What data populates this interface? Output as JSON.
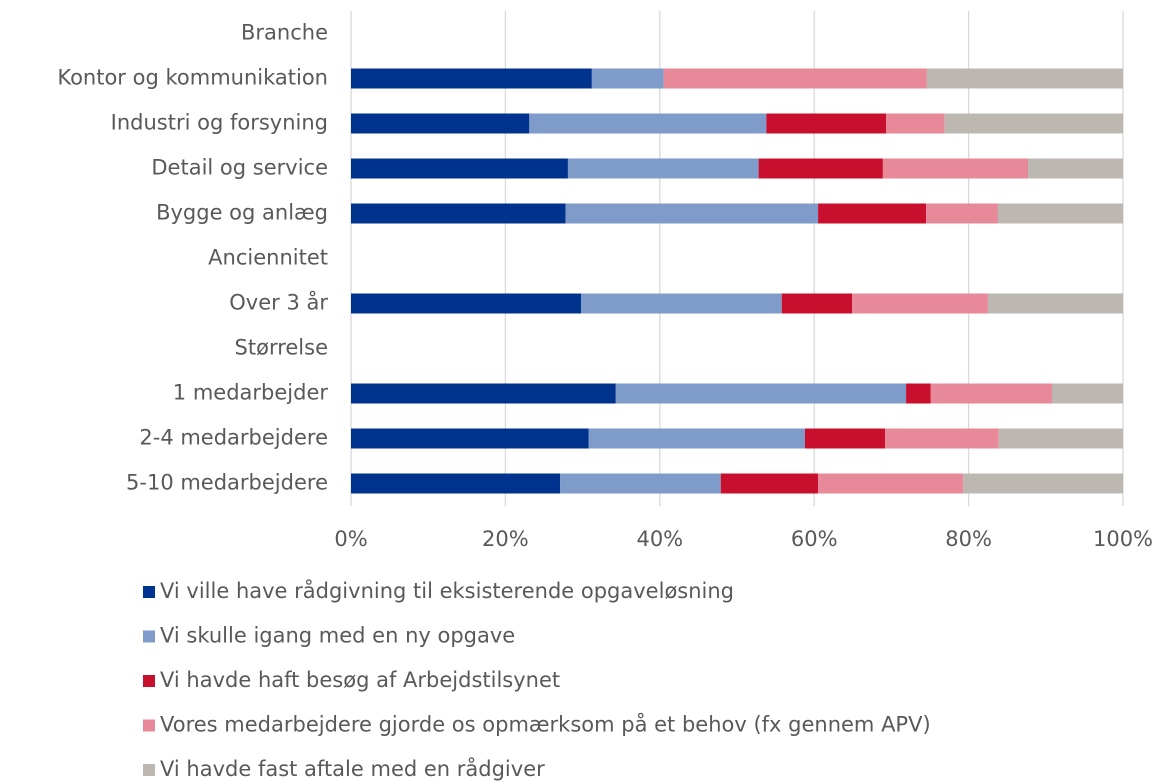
{
  "chart_data": {
    "type": "stacked_bar_horizontal",
    "categories": [
      "Branche",
      "Kontor og kommunikation",
      "Industri og forsyning",
      "Detail og service",
      "Bygge og anlæg",
      "Anciennitet",
      "Over 3 år",
      "Størrelse",
      "1 medarbejder",
      "2-4 medarbejdere",
      "5-10 medarbejdere"
    ],
    "series": [
      {
        "name": "Vi ville have rådgivning til eksisterende opgaveløsning",
        "color": "#00338d",
        "values": [
          null,
          31.2,
          23.1,
          28.1,
          27.8,
          null,
          29.8,
          null,
          34.3,
          30.8,
          27.1
        ]
      },
      {
        "name": "Vi skulle igang med en ny opgave",
        "color": "#7f9bc9",
        "values": [
          null,
          9.3,
          30.7,
          24.7,
          32.7,
          null,
          26.0,
          null,
          37.6,
          28.0,
          20.8
        ]
      },
      {
        "name": "Vi havde haft besøg af Arbejdstilsynet",
        "color": "#c8102e",
        "values": [
          null,
          0,
          15.5,
          16.1,
          14.0,
          null,
          9.1,
          null,
          3.2,
          10.4,
          12.6
        ]
      },
      {
        "name": "Vores medarbejdere gjorde os opmærksom på et behov (fx gennem APV)",
        "color": "#e8899a",
        "values": [
          null,
          34.1,
          7.6,
          18.8,
          9.3,
          null,
          17.6,
          null,
          15.7,
          14.7,
          18.8
        ]
      },
      {
        "name": "Vi havde fast aftale med en rådgiver",
        "color": "#bcb7b1",
        "values": [
          null,
          25.4,
          23.1,
          12.3,
          16.2,
          null,
          17.5,
          null,
          9.2,
          16.1,
          20.7
        ]
      }
    ],
    "xlim": [
      0,
      100
    ],
    "xticks": [
      {
        "value": 0,
        "label": "0%"
      },
      {
        "value": 20,
        "label": "20%"
      },
      {
        "value": 40,
        "label": "40%"
      },
      {
        "value": 60,
        "label": "60%"
      },
      {
        "value": 80,
        "label": "80%"
      },
      {
        "value": 100,
        "label": "100%"
      }
    ],
    "grid": true,
    "legend": "bottom"
  }
}
